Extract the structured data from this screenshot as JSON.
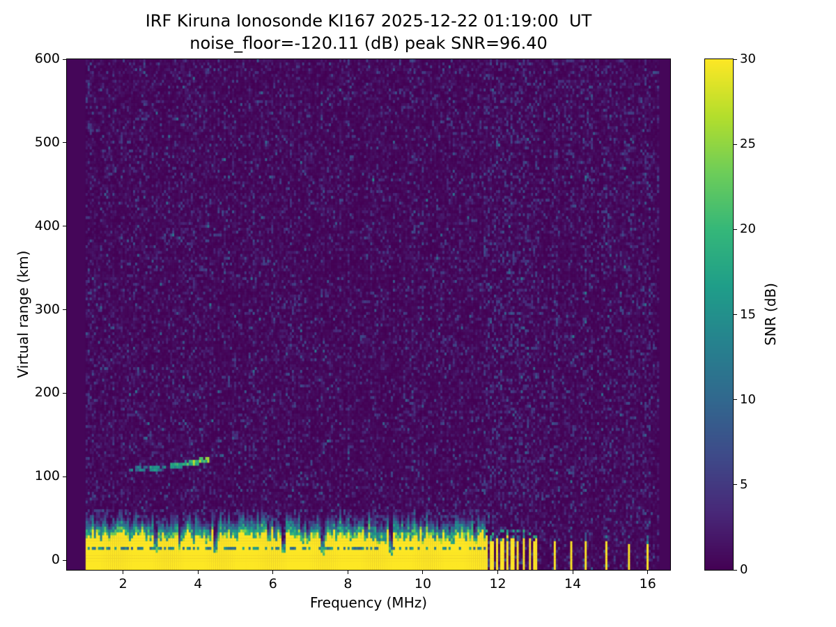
{
  "figure": {
    "title": "IRF Kiruna Ionosonde KI167 2025-12-22 01:19:00  UT",
    "subtitle": "noise_floor=-120.11 (dB) peak SNR=96.40"
  },
  "chart_data": {
    "type": "heatmap",
    "title": "IRF Kiruna Ionosonde KI167 2025-12-22 01:19:00  UT",
    "subtitle": "noise_floor=-120.11 (dB) peak SNR=96.40",
    "xlabel": "Frequency (MHz)",
    "ylabel": "Virtual range (km)",
    "xlim": [
      0.5,
      16.6
    ],
    "ylim": [
      -11.5,
      600
    ],
    "x_ticks": [
      2,
      4,
      6,
      8,
      10,
      12,
      14,
      16
    ],
    "y_ticks": [
      0,
      100,
      200,
      300,
      400,
      500,
      600
    ],
    "freq_range_mhz": [
      1.0,
      16.3
    ],
    "noise_floor_db": -120.11,
    "peak_snr_db": 96.4,
    "seed": 1319,
    "colorbar": {
      "label": "SNR (dB)",
      "min": 0,
      "max": 30,
      "ticks": [
        0,
        5,
        10,
        15,
        20,
        25,
        30
      ],
      "colormap": "viridis"
    },
    "features": {
      "background_snr_db": 1,
      "ground_clutter": {
        "freq_start": 1.0,
        "freq_end": 11.65,
        "snr_db": 30,
        "top_km_mean": 27,
        "top_km_jitter": 9,
        "transition_km": 20,
        "notch_freqs": [
          2.85,
          3.5,
          4.45,
          6.3,
          7.35,
          9.15
        ],
        "notch_width": 0.05,
        "inner_dark_line_km": [
          13,
          16.5
        ]
      },
      "pulse_stripes": {
        "freqs": [
          11.7,
          11.84,
          11.98,
          12.12,
          12.26,
          12.4,
          12.54,
          12.7,
          12.86,
          13.0
        ],
        "width": 0.075,
        "top_km": 22
      },
      "isolated_pulses": {
        "freqs": [
          13.52,
          13.95,
          14.33,
          14.9,
          15.52,
          15.98
        ],
        "width": 0.06,
        "top_km": 19
      },
      "echo_trace": {
        "segments": [
          {
            "f0": 2.15,
            "f1": 2.65,
            "r0": 108,
            "r1": 110,
            "snr": 12,
            "density": 0.85
          },
          {
            "f0": 2.72,
            "f1": 3.15,
            "r0": 110,
            "r1": 112,
            "snr": 14,
            "density": 0.85
          },
          {
            "f0": 3.25,
            "f1": 3.68,
            "r0": 112,
            "r1": 116,
            "snr": 16,
            "density": 0.9
          },
          {
            "f0": 3.72,
            "f1": 4.28,
            "r0": 115,
            "r1": 122,
            "snr": 21,
            "density": 0.95
          },
          {
            "f0": 4.4,
            "f1": 5.3,
            "r0": 124,
            "r1": 134,
            "snr": 8,
            "density": 0.3
          }
        ]
      }
    }
  }
}
